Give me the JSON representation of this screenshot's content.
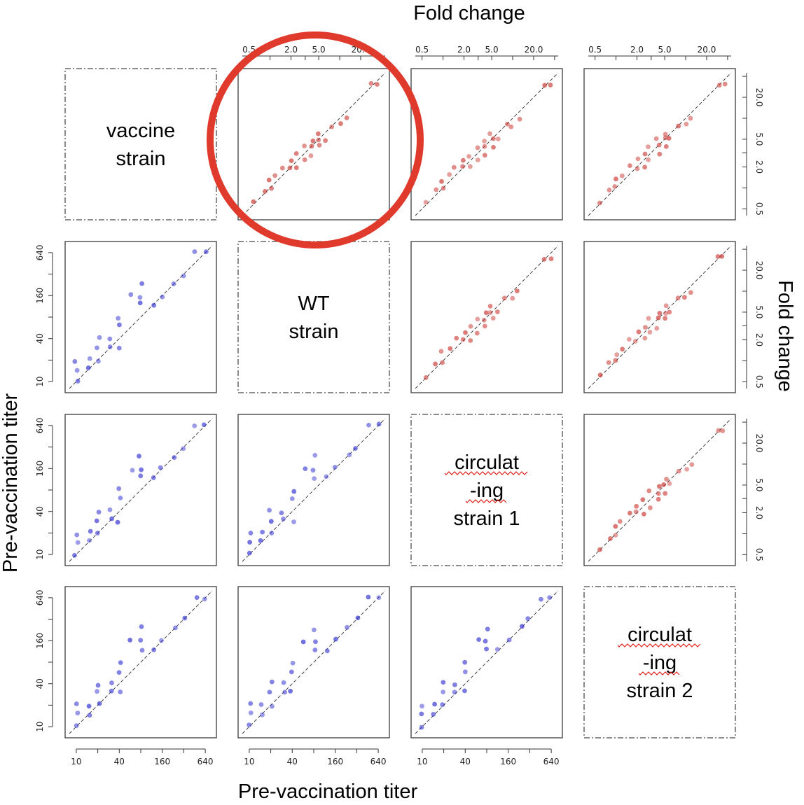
{
  "figure": {
    "top_title": "Fold change",
    "right_title": "Fold change",
    "left_title": "Pre-vaccination titer",
    "bottom_title": "Pre-vaccination titer"
  },
  "strains": [
    {
      "lines": [
        "vaccine",
        "strain"
      ],
      "spell_underline": []
    },
    {
      "lines": [
        "WT",
        "strain"
      ],
      "spell_underline": []
    },
    {
      "lines": [
        "circulat",
        "-ing",
        "strain 1"
      ],
      "spell_underline": [
        0,
        1
      ]
    },
    {
      "lines": [
        "circulat",
        "-ing",
        "strain 2"
      ],
      "spell_underline": [
        0,
        1
      ]
    }
  ],
  "colors": {
    "fold_change_points": "#c8342e",
    "titer_points": "#2a2ad0",
    "highlight_circle": "#e03a2c",
    "spellcheck": "#e0201a"
  },
  "chart_data": [
    {
      "type": "scatter",
      "panel": "upper-triangle fold change (e.g. vaccine strain vs WT strain)",
      "xlabel": "Fold change",
      "ylabel": "Fold change",
      "log_scale": true,
      "xlim": [
        0.4,
        45
      ],
      "ylim": [
        0.4,
        45
      ],
      "x_ticks": [
        "0.5",
        "2.0",
        "5.0",
        "20.0"
      ],
      "y_ticks": [
        "0.5",
        "2.0",
        "5.0",
        "20.0"
      ],
      "reference_line": "y = x (dashed)",
      "points": [
        [
          0.6,
          0.6
        ],
        [
          0.8,
          0.9
        ],
        [
          1,
          1
        ],
        [
          1,
          1.3
        ],
        [
          1.2,
          1.5
        ],
        [
          1.5,
          2
        ],
        [
          2,
          2
        ],
        [
          2,
          2.5
        ],
        [
          2.5,
          2
        ],
        [
          2.5,
          3
        ],
        [
          3,
          2.5
        ],
        [
          3,
          4
        ],
        [
          4,
          3
        ],
        [
          4,
          4
        ],
        [
          4,
          5
        ],
        [
          5,
          4
        ],
        [
          5,
          5
        ],
        [
          5,
          6
        ],
        [
          6,
          5
        ],
        [
          8,
          8
        ],
        [
          10,
          8
        ],
        [
          12,
          10
        ],
        [
          30,
          30
        ],
        [
          35,
          30
        ]
      ]
    },
    {
      "type": "scatter",
      "panel": "lower-triangle pre-vaccination titer (e.g. WT strain vs vaccine strain)",
      "xlabel": "Pre-vaccination titer",
      "ylabel": "Pre-vaccination titer",
      "log_scale": true,
      "xlim": [
        8,
        800
      ],
      "ylim": [
        8,
        800
      ],
      "x_ticks": [
        "10",
        "40",
        "160",
        "640"
      ],
      "y_ticks": [
        "10",
        "40",
        "160",
        "640"
      ],
      "reference_line": "y = x (dashed)",
      "points": [
        [
          10,
          10
        ],
        [
          10,
          15
        ],
        [
          10,
          20
        ],
        [
          15,
          20
        ],
        [
          15,
          15
        ],
        [
          20,
          20
        ],
        [
          20,
          30
        ],
        [
          20,
          40
        ],
        [
          30,
          30
        ],
        [
          30,
          40
        ],
        [
          40,
          30
        ],
        [
          40,
          60
        ],
        [
          40,
          80
        ],
        [
          60,
          160
        ],
        [
          80,
          120
        ],
        [
          80,
          160
        ],
        [
          80,
          240
        ],
        [
          120,
          120
        ],
        [
          160,
          160
        ],
        [
          240,
          240
        ],
        [
          320,
          320
        ],
        [
          480,
          640
        ],
        [
          640,
          640
        ]
      ]
    }
  ]
}
